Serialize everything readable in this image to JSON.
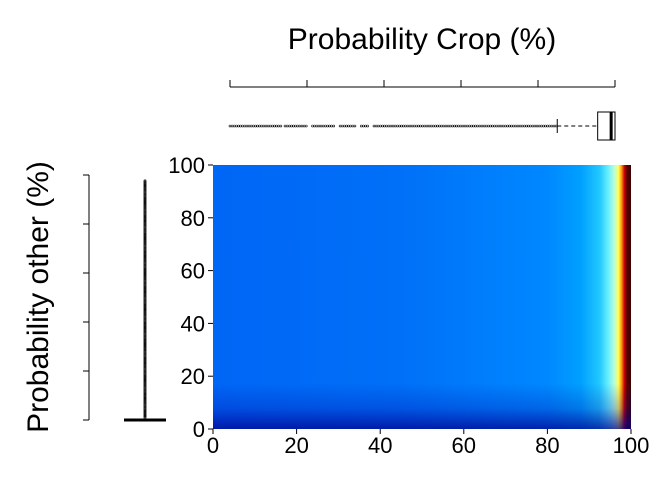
{
  "chart_data": {
    "type": "heatmap",
    "title": "",
    "xlabel": "Probability Crop (%)",
    "ylabel": "Probability other (%)",
    "xlim": [
      0,
      100
    ],
    "ylim": [
      0,
      100
    ],
    "x_ticks": [
      0,
      20,
      40,
      60,
      80,
      100
    ],
    "y_ticks": [
      0,
      20,
      40,
      60,
      80,
      100
    ],
    "x_tick_labels": [
      "0",
      "20",
      "40",
      "60",
      "80",
      "100"
    ],
    "y_tick_labels": [
      "0",
      "20",
      "40",
      "60",
      "80",
      "100"
    ],
    "colormap": [
      "#00007f",
      "#0000ff",
      "#007fff",
      "#00ffff",
      "#7fff7f",
      "#ffff00",
      "#ff7f00",
      "#ff0000",
      "#7f0000"
    ],
    "grid": false,
    "legend": "none",
    "marginal_boxplot_x": {
      "whisker_low": 85,
      "q1": 95.5,
      "median": 99,
      "q3": 100,
      "whisker_high": 100,
      "outlier_range": [
        0,
        85
      ]
    },
    "marginal_boxplot_y": {
      "whisker_low": 0,
      "q1": 0,
      "median": 0,
      "q3": 0,
      "whisker_high": 0,
      "outlier_range": [
        0,
        98
      ]
    }
  }
}
